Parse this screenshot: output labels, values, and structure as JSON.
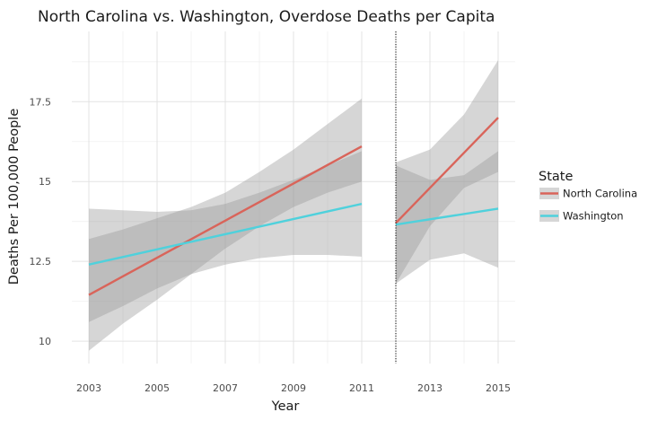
{
  "chart_data": {
    "type": "line",
    "title": "North Carolina vs. Washington, Overdose Deaths per Capita",
    "xlabel": "Year",
    "ylabel": "Deaths Per 100,000 People",
    "xlim": [
      2002.5,
      2015.5
    ],
    "ylim": [
      9.3,
      19.7
    ],
    "x_ticks": [
      2003,
      2005,
      2007,
      2009,
      2011,
      2013,
      2015
    ],
    "y_ticks": [
      10,
      12.5,
      15,
      17.5
    ],
    "y_tick_labels": [
      "10",
      "12.5",
      "15",
      "17.5"
    ],
    "grid": true,
    "vline_x": 2012,
    "legend_title": "State",
    "legend_position": "right",
    "series": [
      {
        "name": "North Carolina",
        "color": "#d9645a",
        "segments": [
          {
            "x": [
              2003,
              2011
            ],
            "y": [
              11.45,
              16.1
            ],
            "band_x": [
              2003,
              2004,
              2005,
              2006,
              2007,
              2008,
              2009,
              2010,
              2011
            ],
            "band_lower": [
              9.7,
              10.55,
              11.3,
              12.1,
              12.9,
              13.6,
              14.2,
              14.65,
              15.0
            ],
            "band_upper": [
              13.2,
              13.5,
              13.85,
              14.2,
              14.65,
              15.3,
              16.0,
              16.8,
              17.6
            ]
          },
          {
            "x": [
              2012,
              2015
            ],
            "y": [
              13.7,
              17.0
            ],
            "band_x": [
              2012,
              2013,
              2014,
              2015
            ],
            "band_lower": [
              11.8,
              13.6,
              14.8,
              15.3
            ],
            "band_upper": [
              15.6,
              16.0,
              17.1,
              18.8
            ]
          }
        ]
      },
      {
        "name": "Washington",
        "color": "#4fd1dc",
        "segments": [
          {
            "x": [
              2003,
              2011
            ],
            "y": [
              12.4,
              14.3
            ],
            "band_x": [
              2003,
              2004,
              2005,
              2006,
              2007,
              2008,
              2009,
              2010,
              2011
            ],
            "band_lower": [
              10.6,
              11.1,
              11.65,
              12.1,
              12.4,
              12.6,
              12.7,
              12.7,
              12.65
            ],
            "band_upper": [
              14.15,
              14.1,
              14.05,
              14.1,
              14.3,
              14.65,
              15.05,
              15.5,
              15.95
            ]
          },
          {
            "x": [
              2012,
              2015
            ],
            "y": [
              13.65,
              14.15
            ],
            "band_x": [
              2012,
              2013,
              2014,
              2015
            ],
            "band_lower": [
              11.8,
              12.55,
              12.75,
              12.3
            ],
            "band_upper": [
              15.5,
              15.05,
              15.2,
              15.95
            ]
          }
        ]
      }
    ]
  }
}
